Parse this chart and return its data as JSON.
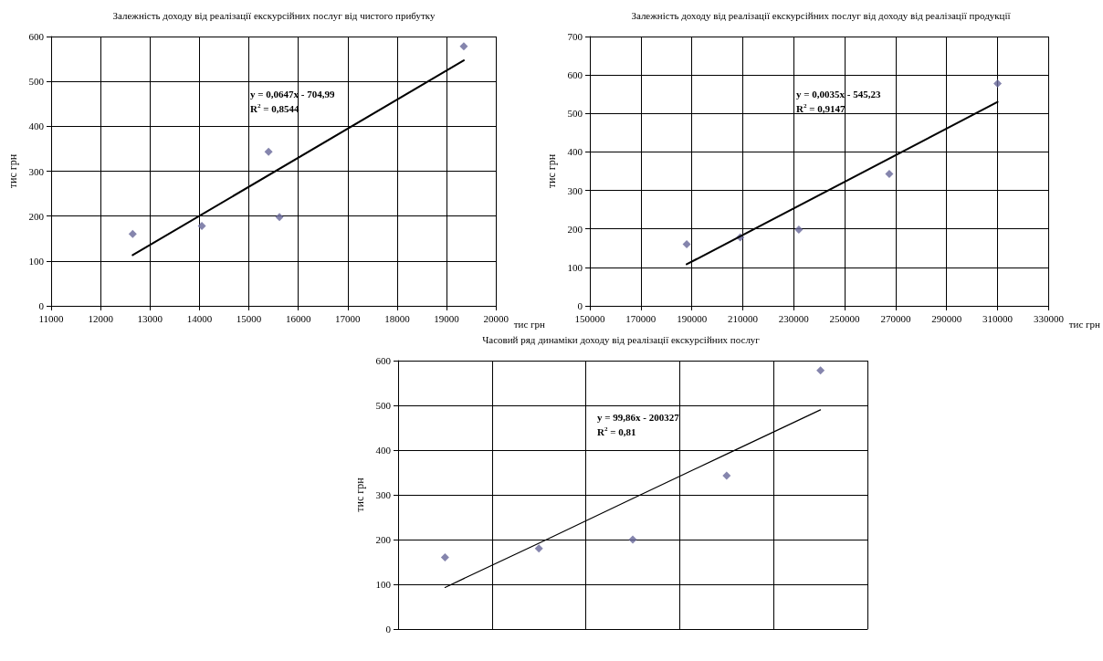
{
  "chart_data": [
    {
      "type": "scatter",
      "title": "Залежність доходу від реалізації екскурсійних послуг від чистого прибутку",
      "xlabel": "тис грн",
      "ylabel": "тис грн",
      "xlim": [
        11000,
        20000
      ],
      "xticks": [
        11000,
        12000,
        13000,
        14000,
        15000,
        16000,
        17000,
        18000,
        19000,
        20000
      ],
      "ylim": [
        0,
        600
      ],
      "yticks": [
        0,
        100,
        200,
        300,
        400,
        500,
        600
      ],
      "grid": true,
      "marker": "diamond",
      "annotations": [
        "y = 0,0647x - 704,99",
        "R$^{2}$ = 0,8544"
      ],
      "series": [
        {
          "color": "#666699",
          "x": [
            12650,
            14050,
            15400,
            15620,
            19350
          ],
          "values": [
            160,
            178,
            343,
            198,
            578
          ]
        },
        {
          "type": "line",
          "color": "#000000",
          "marker": "none",
          "line_style": "solid",
          "x": [
            12650,
            19350
          ],
          "values": [
            113,
            547
          ]
        }
      ]
    },
    {
      "type": "scatter",
      "title": "Залежність доходу від реалізації екскурсійних послуг від доходу від реалізації продукції",
      "xlabel": "тис грн",
      "ylabel": "тис грн",
      "xlim": [
        150000,
        330000
      ],
      "xticks": [
        150000,
        170000,
        190000,
        210000,
        230000,
        250000,
        270000,
        290000,
        310000,
        330000
      ],
      "ylim": [
        0,
        700
      ],
      "yticks": [
        0,
        100,
        200,
        300,
        400,
        500,
        600,
        700
      ],
      "grid": true,
      "marker": "diamond",
      "annotations": [
        "y = 0,0035x - 545,23",
        "R$^{2}$ = 0,9147"
      ],
      "series": [
        {
          "color": "#666699",
          "x": [
            188000,
            209000,
            232000,
            267500,
            310000
          ],
          "values": [
            160,
            178,
            198,
            343,
            578
          ]
        },
        {
          "type": "line",
          "color": "#000000",
          "marker": "none",
          "line_style": "solid",
          "x": [
            188000,
            310000
          ],
          "values": [
            108,
            530
          ]
        }
      ]
    },
    {
      "type": "scatter",
      "title": "Часовий ряд динаміки доходу від реалізації екскурсійних послуг",
      "ylabel": "тис грн",
      "categories": [
        null,
        null,
        null,
        null,
        null
      ],
      "ylim": [
        0,
        600
      ],
      "yticks": [
        0,
        100,
        200,
        300,
        400,
        500,
        600
      ],
      "grid": true,
      "tick_labels": "y",
      "marker": "diamond",
      "annotations": [
        "y = 99,86x - 200327",
        "R$^{2}$ = 0,81"
      ],
      "series": [
        {
          "color": "#666699",
          "values": [
            160,
            180,
            200,
            343,
            578
          ]
        },
        {
          "type": "line",
          "color": "#000000",
          "marker": "none",
          "line_style": "solid",
          "values": [
            93,
            192,
            292,
            391,
            490
          ]
        }
      ]
    }
  ]
}
